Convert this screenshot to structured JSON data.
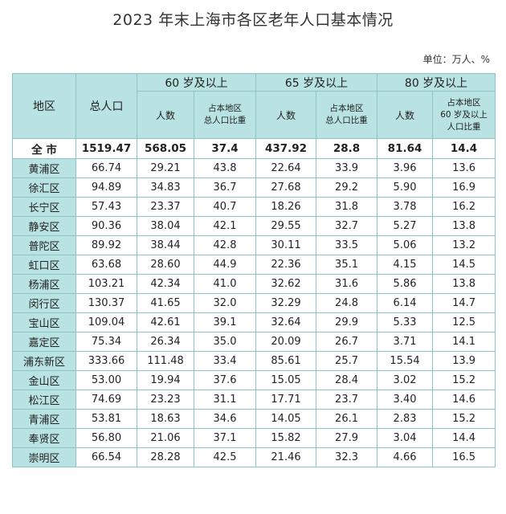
{
  "title": "2023 年末上海市各区老年人口基本情况",
  "unit_note": "单位：万人、%",
  "header": {
    "district": "地区",
    "total_population": "总人口",
    "group_60": "60 岁及以上",
    "group_65": "65 岁及以上",
    "group_80": "80 岁及以上",
    "count_label": "人数",
    "ratio_label": "占本地区\n总人口比重",
    "ratio_80_label": "占本地区\n60 岁及以上\n人口比重"
  },
  "total_row": {
    "district": "全 市",
    "total": "1519.47",
    "p60": "568.05",
    "r60": "37.4",
    "p65": "437.92",
    "r65": "28.8",
    "p80": "81.64",
    "r80": "14.4"
  },
  "rows": [
    {
      "district": "黄浦区",
      "total": "66.74",
      "p60": "29.21",
      "r60": "43.8",
      "p65": "22.64",
      "r65": "33.9",
      "p80": "3.96",
      "r80": "13.6"
    },
    {
      "district": "徐汇区",
      "total": "94.89",
      "p60": "34.83",
      "r60": "36.7",
      "p65": "27.68",
      "r65": "29.2",
      "p80": "5.90",
      "r80": "16.9"
    },
    {
      "district": "长宁区",
      "total": "57.43",
      "p60": "23.37",
      "r60": "40.7",
      "p65": "18.26",
      "r65": "31.8",
      "p80": "3.78",
      "r80": "16.2"
    },
    {
      "district": "静安区",
      "total": "90.36",
      "p60": "38.04",
      "r60": "42.1",
      "p65": "29.55",
      "r65": "32.7",
      "p80": "5.27",
      "r80": "13.8"
    },
    {
      "district": "普陀区",
      "total": "89.92",
      "p60": "38.44",
      "r60": "42.8",
      "p65": "30.11",
      "r65": "33.5",
      "p80": "5.06",
      "r80": "13.2"
    },
    {
      "district": "虹口区",
      "total": "63.68",
      "p60": "28.60",
      "r60": "44.9",
      "p65": "22.36",
      "r65": "35.1",
      "p80": "4.15",
      "r80": "14.5"
    },
    {
      "district": "杨浦区",
      "total": "103.21",
      "p60": "42.34",
      "r60": "41.0",
      "p65": "32.62",
      "r65": "31.6",
      "p80": "5.86",
      "r80": "13.8"
    },
    {
      "district": "闵行区",
      "total": "130.37",
      "p60": "41.65",
      "r60": "32.0",
      "p65": "32.29",
      "r65": "24.8",
      "p80": "6.14",
      "r80": "14.7"
    },
    {
      "district": "宝山区",
      "total": "109.04",
      "p60": "42.61",
      "r60": "39.1",
      "p65": "32.64",
      "r65": "29.9",
      "p80": "5.33",
      "r80": "12.5"
    },
    {
      "district": "嘉定区",
      "total": "75.34",
      "p60": "26.34",
      "r60": "35.0",
      "p65": "20.09",
      "r65": "26.7",
      "p80": "3.71",
      "r80": "14.1"
    },
    {
      "district": "浦东新区",
      "total": "333.66",
      "p60": "111.48",
      "r60": "33.4",
      "p65": "85.61",
      "r65": "25.7",
      "p80": "15.54",
      "r80": "13.9"
    },
    {
      "district": "金山区",
      "total": "53.00",
      "p60": "19.94",
      "r60": "37.6",
      "p65": "15.05",
      "r65": "28.4",
      "p80": "3.02",
      "r80": "15.2"
    },
    {
      "district": "松江区",
      "total": "74.69",
      "p60": "23.23",
      "r60": "31.1",
      "p65": "17.71",
      "r65": "23.7",
      "p80": "3.40",
      "r80": "14.6"
    },
    {
      "district": "青浦区",
      "total": "53.81",
      "p60": "18.63",
      "r60": "34.6",
      "p65": "14.05",
      "r65": "26.1",
      "p80": "2.83",
      "r80": "15.2"
    },
    {
      "district": "奉贤区",
      "total": "56.80",
      "p60": "21.06",
      "r60": "37.1",
      "p65": "15.82",
      "r65": "27.9",
      "p80": "3.04",
      "r80": "14.4"
    },
    {
      "district": "崇明区",
      "total": "66.54",
      "p60": "28.28",
      "r60": "42.5",
      "p65": "21.46",
      "r65": "32.3",
      "p80": "4.66",
      "r80": "16.5"
    }
  ],
  "colors": {
    "header_bg": "#b9e3e2",
    "border": "#8fc4c6"
  }
}
